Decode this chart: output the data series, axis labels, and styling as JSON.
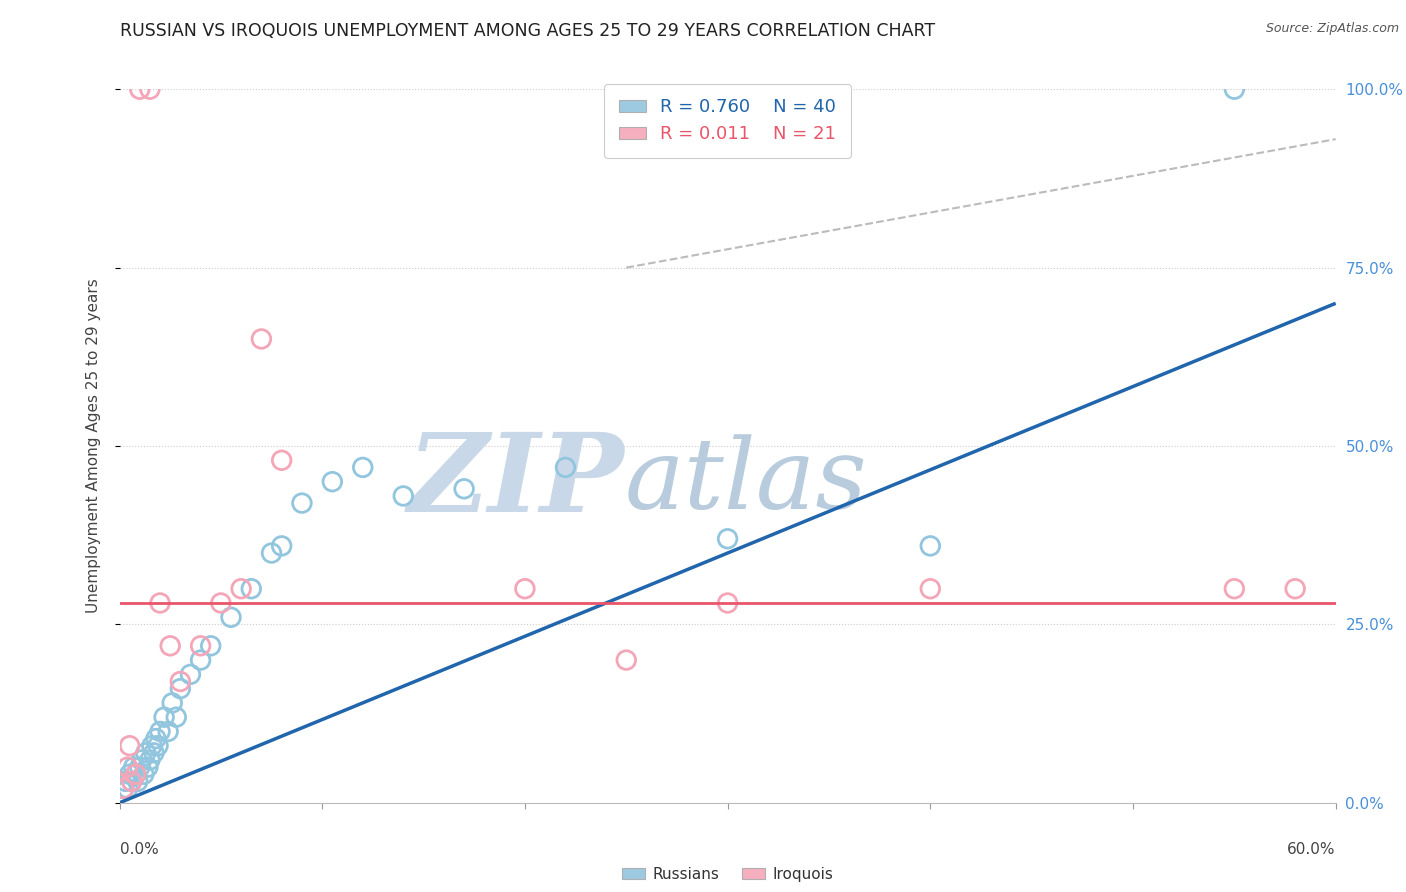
{
  "title": "RUSSIAN VS IROQUOIS UNEMPLOYMENT AMONG AGES 25 TO 29 YEARS CORRELATION CHART",
  "source": "Source: ZipAtlas.com",
  "ylabel": "Unemployment Among Ages 25 to 29 years",
  "ytick_values": [
    0,
    25,
    50,
    75,
    100
  ],
  "xlim": [
    0,
    60
  ],
  "ylim": [
    0,
    100
  ],
  "watermark_zip": "ZIP",
  "watermark_atlas": "atlas",
  "legend_russian_R": "0.760",
  "legend_russian_N": "40",
  "legend_iroquois_R": "0.011",
  "legend_iroquois_N": "21",
  "russian_color": "#92c5de",
  "iroquois_color": "#f4a6b8",
  "russian_trend_color": "#2166ac",
  "iroquois_trend_color": "#e8566a",
  "diag_color": "#bbbbbb",
  "grid_color": "#cccccc",
  "background_color": "#ffffff",
  "title_fontsize": 12.5,
  "axis_label_fontsize": 11,
  "tick_fontsize": 11,
  "watermark_fontsize_zip": 80,
  "watermark_fontsize_atlas": 72,
  "russian_scatter_x": [
    0.2,
    0.3,
    0.4,
    0.5,
    0.6,
    0.7,
    0.8,
    0.9,
    1.0,
    1.1,
    1.2,
    1.3,
    1.4,
    1.5,
    1.6,
    1.7,
    1.8,
    1.9,
    2.0,
    2.2,
    2.4,
    2.6,
    2.8,
    3.0,
    3.5,
    4.0,
    4.5,
    5.5,
    6.5,
    7.5,
    8.0,
    9.0,
    10.5,
    12.0,
    14.0,
    17.0,
    22.0,
    30.0,
    40.0,
    55.0
  ],
  "russian_scatter_y": [
    2,
    3,
    2,
    4,
    3,
    5,
    4,
    3,
    5,
    6,
    4,
    7,
    5,
    6,
    8,
    7,
    9,
    8,
    10,
    12,
    10,
    14,
    12,
    16,
    18,
    20,
    22,
    26,
    30,
    35,
    36,
    42,
    45,
    47,
    43,
    44,
    47,
    37,
    36,
    100
  ],
  "iroquois_scatter_x": [
    0.2,
    0.4,
    0.6,
    0.8,
    1.0,
    1.5,
    2.0,
    2.5,
    3.0,
    4.0,
    5.0,
    6.0,
    7.0,
    8.0,
    20.0,
    25.0,
    30.0,
    40.0,
    55.0,
    58.0,
    0.5
  ],
  "iroquois_scatter_y": [
    2,
    5,
    3,
    4,
    100,
    100,
    28,
    22,
    17,
    22,
    28,
    30,
    65,
    48,
    30,
    20,
    28,
    30,
    30,
    30,
    8
  ],
  "russian_trend_x0": 0,
  "russian_trend_y0": 0,
  "russian_trend_x1": 60,
  "russian_trend_y1": 70,
  "iroquois_trend_y": 28,
  "diag_x0": 25,
  "diag_y0": 75,
  "diag_x1": 60,
  "diag_y1": 93
}
